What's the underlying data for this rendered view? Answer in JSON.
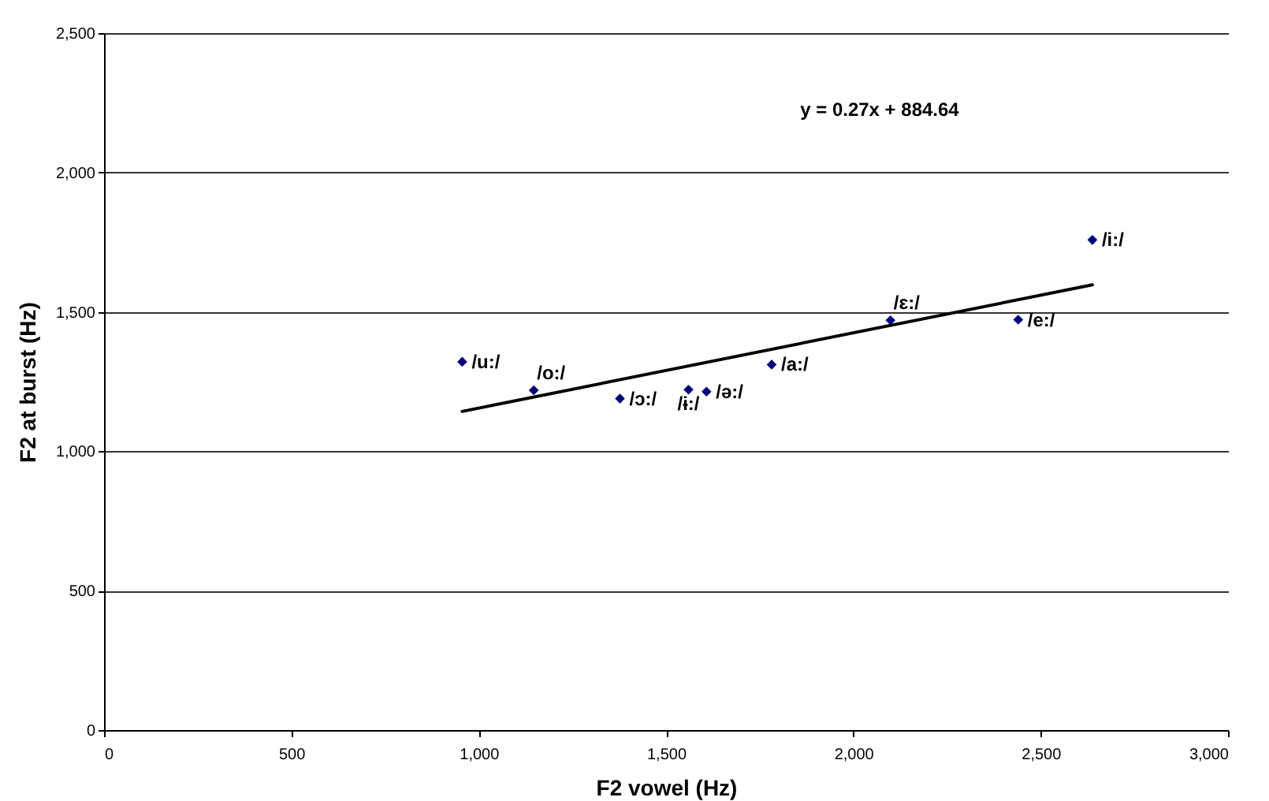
{
  "chart_data": {
    "type": "scatter",
    "xlabel": "F2 vowel (Hz)",
    "ylabel": "F2 at burst (Hz)",
    "xlim": [
      0,
      3000
    ],
    "xticks": [
      0,
      {
        "value": 500,
        "label": "500"
      },
      {
        "value": 1000,
        "label": "1,000"
      },
      {
        "value": 1500,
        "label": "1,500"
      },
      {
        "value": 2000,
        "label": "2,000"
      },
      {
        "value": 2500,
        "label": "2,500"
      },
      {
        "value": 3000,
        "label": "3,000"
      }
    ],
    "ylim": [
      0,
      2500
    ],
    "yticks": [
      0,
      {
        "value": 500,
        "label": "500"
      },
      {
        "value": 1000,
        "label": "1,000"
      },
      {
        "value": 1500,
        "label": "1,500"
      },
      {
        "value": 2000,
        "label": "2,000"
      },
      {
        "value": 2500,
        "label": "2,500"
      }
    ],
    "grid": "y",
    "series": [
      {
        "marker": "diamond",
        "color": "#000080",
        "x": [
          956,
          1147,
          1377,
          1560,
          1608,
          1782,
          2099,
          2440,
          2638
        ],
        "values": [
          1321,
          1219,
          1189,
          1221,
          1214,
          1311,
          1470,
          1472,
          1758
        ]
      },
      {
        "type": "line",
        "marker": "none",
        "color": "#000000",
        "x": [
          956,
          2638
        ],
        "values": [
          1143,
          1597
        ]
      }
    ],
    "annotations": [
      {
        "text": "/u:/",
        "x": 956,
        "y": 1321
      },
      {
        "text": "/o:/",
        "x": 1147,
        "y": 1219
      },
      {
        "text": "/ɔ:/",
        "x": 1377,
        "y": 1189
      },
      {
        "text": "/ɨ:/",
        "x": 1560,
        "y": 1221
      },
      {
        "text": "/ə:/",
        "x": 1608,
        "y": 1214
      },
      {
        "text": "/a:/",
        "x": 1782,
        "y": 1311
      },
      {
        "text": "/ɛ:/",
        "x": 2099,
        "y": 1470
      },
      {
        "text": "/e:/",
        "x": 2440,
        "y": 1472
      },
      {
        "text": "/i:/",
        "x": 2638,
        "y": 1758
      },
      "y = 0.27x + 884.64"
    ]
  }
}
